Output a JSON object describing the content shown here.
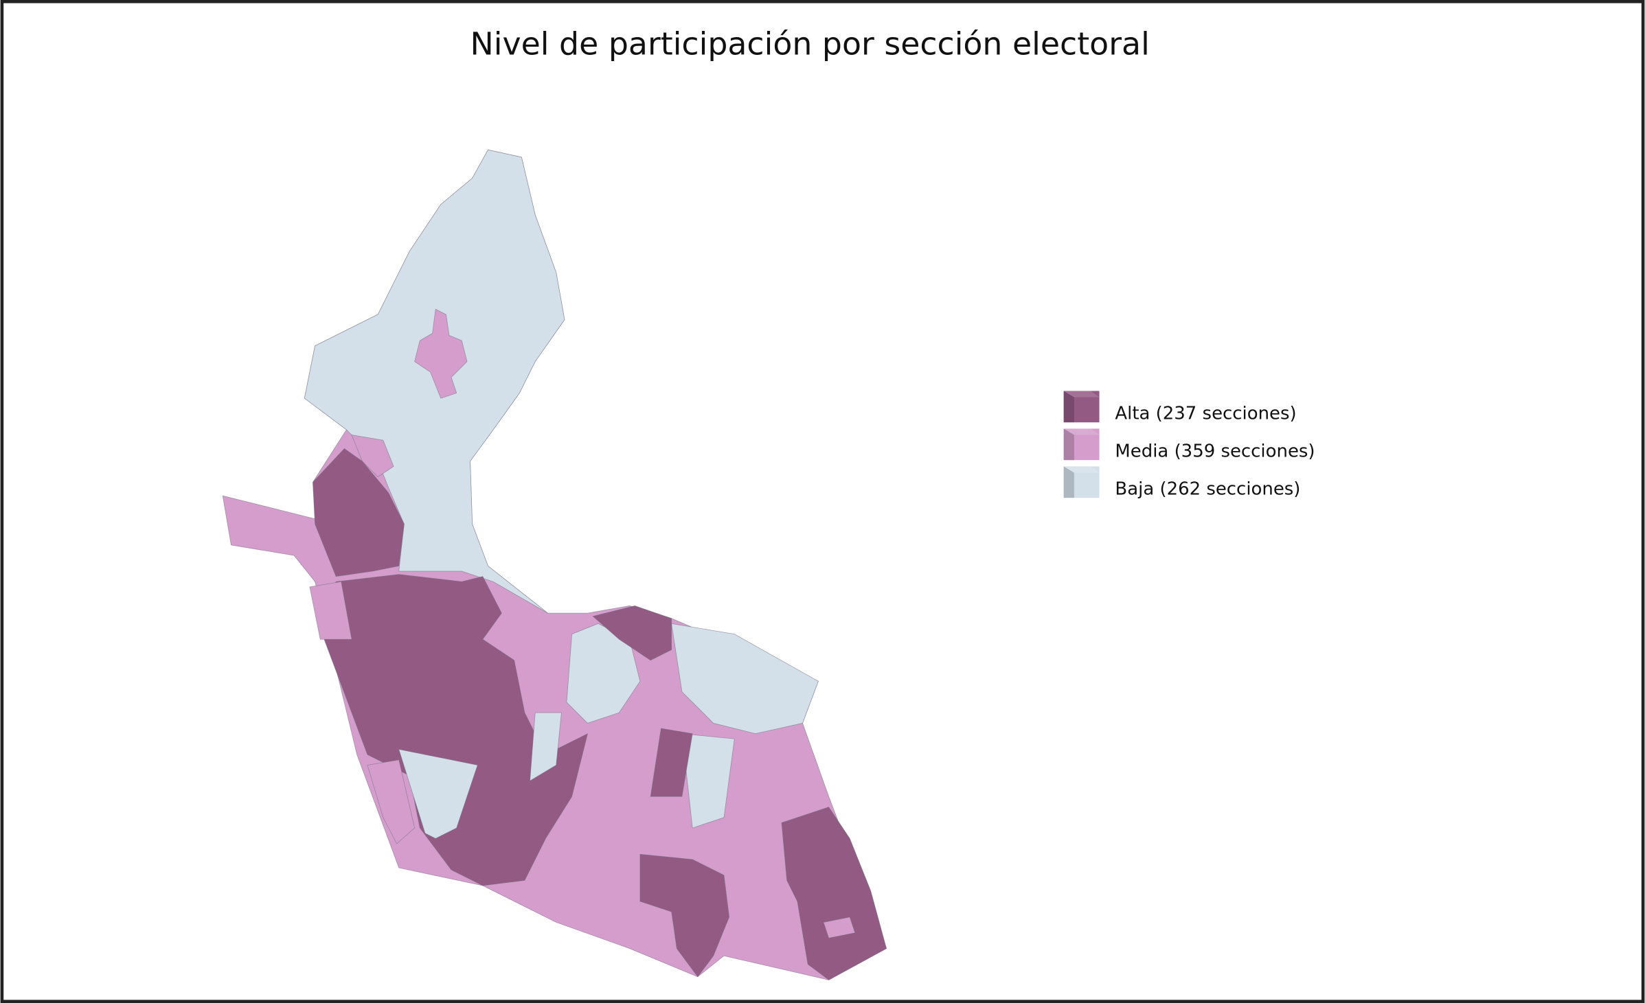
{
  "title": "Nivel de participación por sección electoral",
  "legend": [
    {
      "label": "Alta (237 secciones)",
      "color": "#935a84"
    },
    {
      "label": "Media (359 secciones)",
      "color": "#d49dcb"
    },
    {
      "label": "Baja (262 secciones)",
      "color": "#d3e0ea"
    }
  ]
}
